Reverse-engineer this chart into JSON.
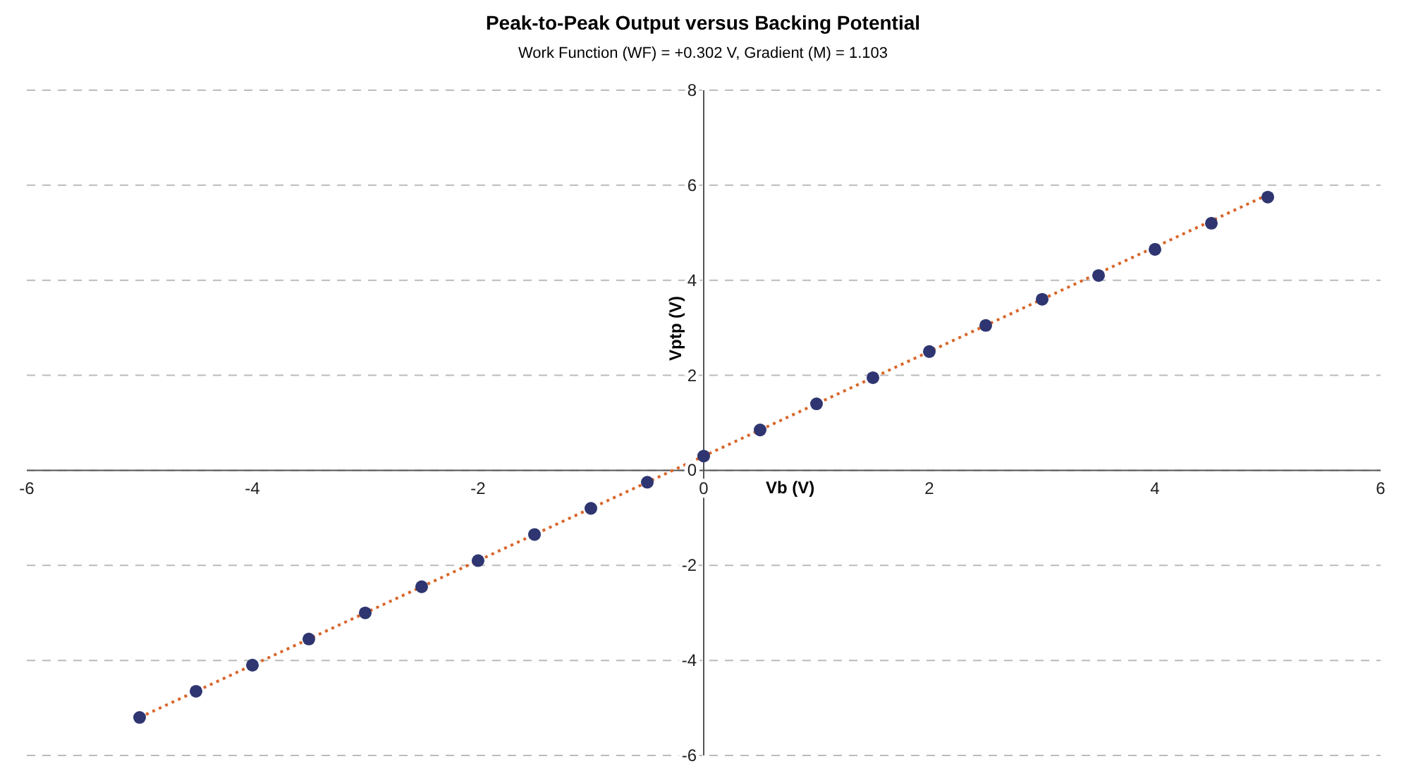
{
  "chart_data": {
    "type": "scatter",
    "title": "Peak-to-Peak Output versus Backing Potential",
    "subtitle": "Work Function (WF) = +0.302 V, Gradient (M) = 1.103",
    "xlabel": "Vb (V)",
    "ylabel": "Vptp (V)",
    "x": [
      -5,
      -4.5,
      -4,
      -3.5,
      -3,
      -2.5,
      -2,
      -1.5,
      -1,
      -0.5,
      0,
      0.5,
      1,
      1.5,
      2,
      2.5,
      3,
      3.5,
      4,
      4.5,
      5
    ],
    "series": [
      {
        "color": "#2e3570",
        "marker": "circle",
        "values": [
          -5.2,
          -4.65,
          -4.1,
          -3.55,
          -3.0,
          -2.45,
          -1.9,
          -1.35,
          -0.8,
          -0.25,
          0.3,
          0.85,
          1.4,
          1.95,
          2.5,
          3.05,
          3.6,
          4.1,
          4.65,
          5.2,
          5.75
        ]
      },
      {
        "type": "line",
        "color": "#d9662a",
        "marker": "none",
        "line_style": "dotted",
        "x": [
          -5,
          5
        ],
        "values": [
          -5.2,
          5.8
        ]
      }
    ],
    "xlim": [
      -6,
      6
    ],
    "xticks": [
      -6,
      -4,
      -2,
      0,
      2,
      4,
      6
    ],
    "ylim": [
      -6,
      8
    ],
    "yticks": [
      -6,
      -4,
      -2,
      0,
      2,
      4,
      6,
      8
    ],
    "grid": "y"
  }
}
